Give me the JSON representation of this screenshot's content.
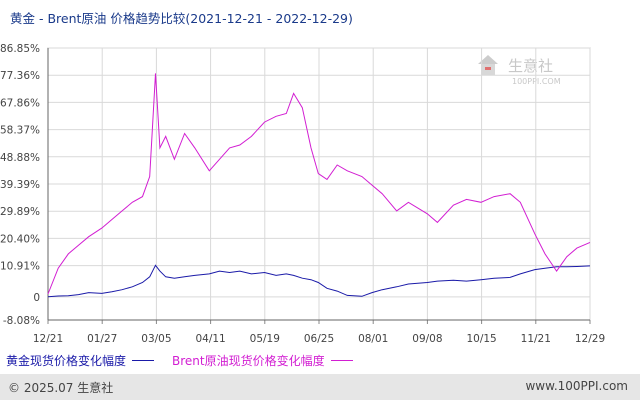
{
  "title": "黄金 - Brent原油 价格趋势比较(2021-12-21 - 2022-12-29)",
  "watermark": {
    "brand": "生意社",
    "url": "100PPI.COM"
  },
  "legend": {
    "gold_label": "黄金现货价格变化幅度",
    "brent_label": "Brent原油现货价格变化幅度"
  },
  "footer": {
    "copyright": "© 2025.07 生意社",
    "site": "www.100PPI.com"
  },
  "colors": {
    "gold": "#1a1aa8",
    "brent": "#d21ed2",
    "grid": "#d9d9d9",
    "axis": "#666666",
    "title": "#1a3a8a"
  },
  "chart_data": {
    "type": "line",
    "title": "黄金 - Brent原油 价格趋势比较(2021-12-21 - 2022-12-29)",
    "y_tick_labels": [
      "86.85%",
      "77.36%",
      "67.86%",
      "58.37%",
      "48.88%",
      "39.39%",
      "29.89%",
      "20.40%",
      "10.91%",
      "0",
      "-8.08%"
    ],
    "y_tick_values": [
      86.85,
      77.36,
      67.86,
      58.37,
      48.88,
      39.39,
      29.89,
      20.4,
      10.91,
      0,
      -8.08
    ],
    "ylim": [
      -8.08,
      86.85
    ],
    "x_tick_labels": [
      "12/21",
      "01/27",
      "03/05",
      "04/11",
      "05/19",
      "06/25",
      "08/01",
      "09/08",
      "10/15",
      "11/21",
      "12/29"
    ],
    "x": [
      "2021-12-21",
      "2021-12-28",
      "2022-01-04",
      "2022-01-11",
      "2022-01-18",
      "2022-01-27",
      "2022-02-03",
      "2022-02-10",
      "2022-02-17",
      "2022-02-24",
      "2022-03-01",
      "2022-03-05",
      "2022-03-08",
      "2022-03-12",
      "2022-03-18",
      "2022-03-25",
      "2022-04-01",
      "2022-04-11",
      "2022-04-18",
      "2022-04-25",
      "2022-05-02",
      "2022-05-10",
      "2022-05-19",
      "2022-05-27",
      "2022-06-03",
      "2022-06-08",
      "2022-06-14",
      "2022-06-20",
      "2022-06-25",
      "2022-07-01",
      "2022-07-08",
      "2022-07-15",
      "2022-07-25",
      "2022-08-01",
      "2022-08-08",
      "2022-08-18",
      "2022-08-26",
      "2022-09-08",
      "2022-09-15",
      "2022-09-26",
      "2022-10-05",
      "2022-10-15",
      "2022-10-24",
      "2022-11-04",
      "2022-11-11",
      "2022-11-21",
      "2022-11-28",
      "2022-12-06",
      "2022-12-13",
      "2022-12-20",
      "2022-12-29"
    ],
    "series": [
      {
        "name": "黄金现货价格变化幅度",
        "color": "#1a1aa8",
        "values": [
          0,
          0.3,
          0.4,
          0.8,
          1.5,
          1.2,
          1.8,
          2.5,
          3.5,
          5,
          7,
          11,
          9,
          7,
          6.5,
          7,
          7.5,
          8,
          9,
          8.5,
          9,
          8,
          8.5,
          7.5,
          8,
          7.5,
          6.5,
          6,
          5,
          3,
          2,
          0.5,
          0.2,
          1.5,
          2.5,
          3.5,
          4.5,
          5,
          5.5,
          5.8,
          5.5,
          6,
          6.5,
          6.8,
          8,
          9.5,
          10,
          10.5,
          10.5,
          10.6,
          10.8
        ]
      },
      {
        "name": "Brent原油现货价格变化幅度",
        "color": "#d21ed2",
        "values": [
          1,
          10,
          15,
          18,
          21,
          24,
          27,
          30,
          33,
          35,
          42,
          78,
          52,
          56,
          48,
          57,
          52,
          44,
          48,
          52,
          53,
          56,
          61,
          63,
          64,
          71,
          66,
          52,
          43,
          41,
          46,
          44,
          42,
          39,
          36,
          30,
          33,
          29,
          26,
          32,
          34,
          33,
          35,
          36,
          33,
          22,
          15,
          9,
          14,
          17,
          19
        ]
      }
    ]
  }
}
